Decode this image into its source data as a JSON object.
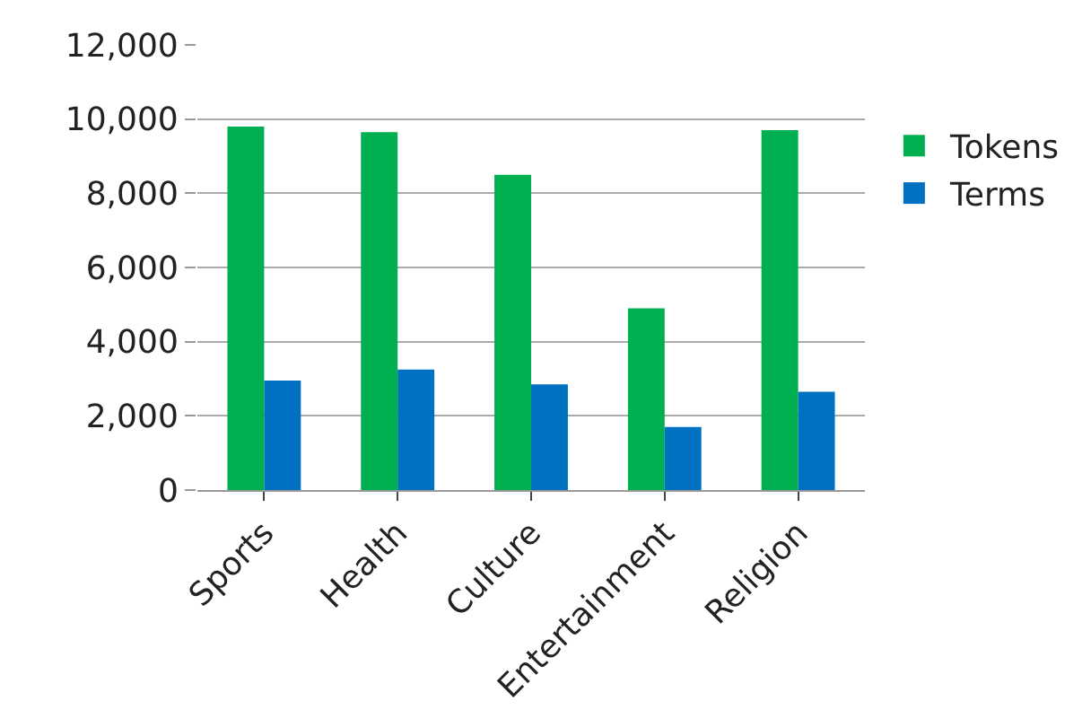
{
  "chart_data": {
    "type": "bar",
    "categories": [
      "Sports",
      "Health",
      "Culture",
      "Entertainment",
      "Religion"
    ],
    "series": [
      {
        "name": "Tokens",
        "color": "#00b050",
        "values": [
          9800,
          9650,
          8500,
          4900,
          9700
        ]
      },
      {
        "name": "Terms",
        "color": "#0070c0",
        "values": [
          2950,
          3250,
          2850,
          1700,
          2650
        ]
      }
    ],
    "ylim": [
      0,
      12000
    ],
    "yticks": [
      {
        "value": 0,
        "label": "0"
      },
      {
        "value": 2000,
        "label": "2,000"
      },
      {
        "value": 4000,
        "label": "4,000"
      },
      {
        "value": 6000,
        "label": "6,000"
      },
      {
        "value": 8000,
        "label": "8,000"
      },
      {
        "value": 10000,
        "label": "10,000"
      },
      {
        "value": 12000,
        "label": "12,000"
      }
    ],
    "grid": "y",
    "legend": "right"
  }
}
